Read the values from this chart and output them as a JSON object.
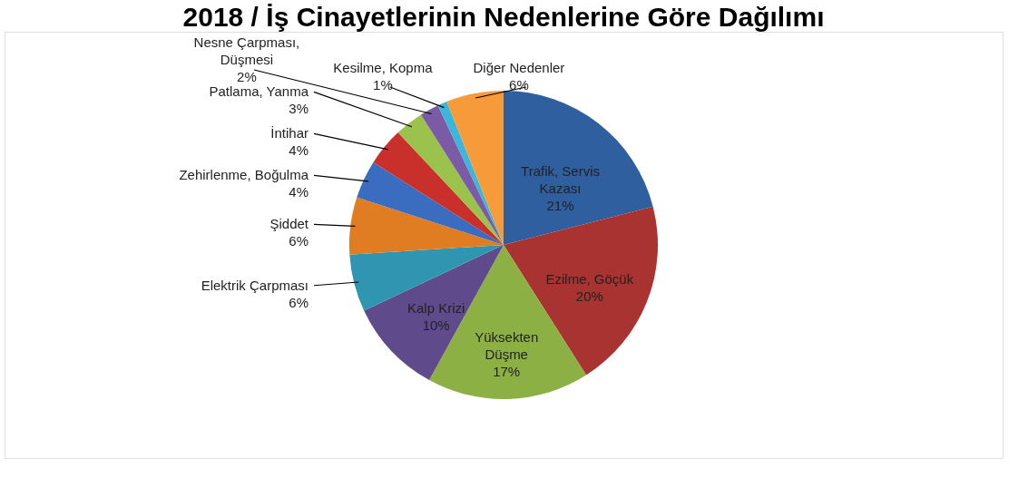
{
  "chart_data": {
    "type": "pie",
    "title": "2018 / İş Cinayetlerinin Nedenlerine Göre Dağılımı",
    "categories": [
      "Trafik, Servis Kazası",
      "Ezilme, Göçük",
      "Yüksekten Düşme",
      "Kalp Krizi",
      "Elektrik Çarpması",
      "Şiddet",
      "Zehirlenme, Boğulma",
      "İntihar",
      "Patlama, Yanma",
      "Nesne Çarpması, Düşmesi",
      "Kesilme, Kopma",
      "Diğer Nedenler"
    ],
    "values": [
      21,
      20,
      17,
      10,
      6,
      6,
      4,
      4,
      3,
      2,
      1,
      6
    ],
    "value_labels": [
      "21%",
      "20%",
      "17%",
      "10%",
      "6%",
      "6%",
      "4%",
      "4%",
      "3%",
      "2%",
      "1%",
      "6%"
    ],
    "colors": [
      "#2f5f9e",
      "#a83330",
      "#8cb043",
      "#5f4a8b",
      "#2f95b0",
      "#e07c22",
      "#3a6cc0",
      "#c9302c",
      "#9bc24c",
      "#7b5aa6",
      "#3cb7d9",
      "#f79a3a"
    ]
  }
}
